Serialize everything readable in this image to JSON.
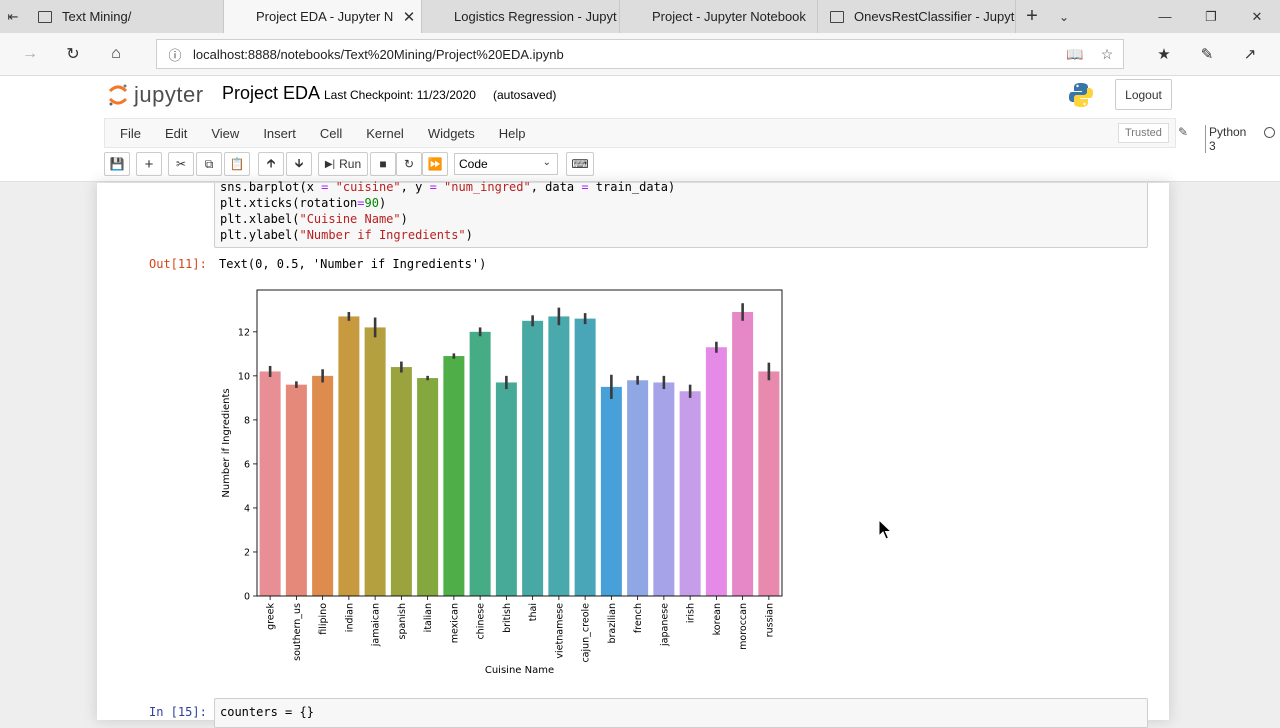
{
  "browser": {
    "tabs": [
      {
        "title": "Text Mining/",
        "active": false,
        "closable": false
      },
      {
        "title": "Project EDA - Jupyter N",
        "active": true,
        "closable": true
      },
      {
        "title": "Logistics Regression - Jupyt",
        "active": false,
        "closable": false
      },
      {
        "title": "Project - Jupyter Notebook",
        "active": false,
        "closable": false
      },
      {
        "title": "OnevsRestClassifier - Jupyte",
        "active": false,
        "closable": false
      }
    ],
    "url": "localhost:8888/notebooks/Text%20Mining/Project%20EDA.ipynb"
  },
  "jupyter": {
    "logo_text": "jupyter",
    "notebook_name": "Project EDA",
    "checkpoint": "Last Checkpoint: 11/23/2020",
    "autosaved": "(autosaved)",
    "logout_label": "Logout",
    "menu": [
      "File",
      "Edit",
      "View",
      "Insert",
      "Cell",
      "Kernel",
      "Widgets",
      "Help"
    ],
    "trusted_label": "Trusted",
    "kernel_name": "Python 3",
    "toolbar": {
      "run_label": "Run",
      "cell_type": "Code"
    }
  },
  "cells": {
    "code_lines": [
      "sns.barplot(x = \"cuisine\", y = \"num_ingred\", data = train_data)",
      "plt.xticks(rotation=90)",
      "plt.xlabel(\"Cuisine Name\")",
      "plt.ylabel(\"Number if Ingredients\")"
    ],
    "out_prompt": "Out[11]:",
    "out_text": "Text(0, 0.5, 'Number if Ingredients')",
    "next_in_prompt": "In [15]:",
    "next_code": "counters = {}"
  },
  "chart_data": {
    "type": "bar",
    "categories": [
      "greek",
      "southern_us",
      "filipino",
      "indian",
      "jamaican",
      "spanish",
      "italian",
      "mexican",
      "chinese",
      "british",
      "thai",
      "vietnamese",
      "cajun_creole",
      "brazilian",
      "french",
      "japanese",
      "irish",
      "korean",
      "moroccan",
      "russian"
    ],
    "values": [
      10.2,
      9.6,
      10.0,
      12.7,
      12.2,
      10.4,
      9.9,
      10.9,
      12.0,
      9.7,
      12.5,
      12.7,
      12.6,
      9.5,
      9.8,
      9.7,
      9.3,
      11.3,
      12.9,
      10.2
    ],
    "errors": [
      0.25,
      0.15,
      0.3,
      0.2,
      0.45,
      0.25,
      0.1,
      0.12,
      0.2,
      0.3,
      0.25,
      0.4,
      0.25,
      0.55,
      0.2,
      0.3,
      0.3,
      0.25,
      0.4,
      0.4
    ],
    "colors": [
      "#e78f94",
      "#e5897a",
      "#dd8c4d",
      "#c89a3f",
      "#b4a03f",
      "#9ba33e",
      "#84a83d",
      "#4fae48",
      "#46ac86",
      "#47aa99",
      "#48a9a4",
      "#49a9ad",
      "#48a6b8",
      "#48a0d9",
      "#8fa7e5",
      "#a7a3e8",
      "#c59de9",
      "#e58ae6",
      "#e688c7",
      "#e889ae"
    ],
    "xlabel": "Cuisine Name",
    "ylabel": "Number if Ingredients",
    "ylim": [
      0,
      13.9
    ],
    "yticks": [
      0,
      2,
      4,
      6,
      8,
      10,
      12
    ]
  }
}
